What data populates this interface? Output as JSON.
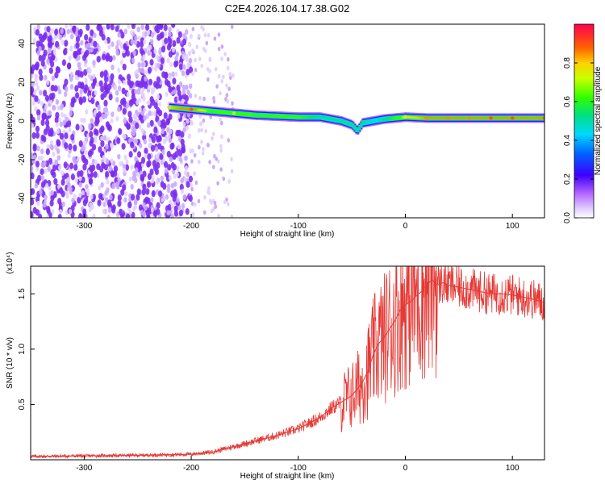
{
  "title": "C2E4.2026.104.17.38.G02",
  "colors": {
    "snr_line": "#e53935",
    "spec_purple": "#7b2cf0",
    "spec_lavender": "#c9a8ff",
    "spec_pale": "#e2d2ff",
    "frame": "#000000"
  },
  "chart_data": [
    {
      "type": "heatmap",
      "title": "C2E4.2026.104.17.38.G02",
      "xlabel": "Height of straight line (km)",
      "ylabel": "Frequency (Hz)",
      "xlim": [
        -350,
        130
      ],
      "ylim": [
        -50,
        50
      ],
      "x_ticks": [
        -300,
        -200,
        -100,
        0,
        100
      ],
      "x_tick_labels": [
        "-300",
        "-200",
        "-100",
        "0",
        "100"
      ],
      "y_ticks": [
        40,
        20,
        0,
        -20,
        -40
      ],
      "y_tick_labels": [
        "40",
        "20",
        "0",
        "-20",
        "-40"
      ],
      "colorbar": {
        "label": "Normalized spectral amplitude",
        "range": [
          0,
          1
        ],
        "ticks": [
          0.0,
          0.2,
          0.4,
          0.6,
          0.8
        ],
        "tick_labels": [
          "0.0",
          "0.2",
          "0.4",
          "0.6",
          "0.8"
        ]
      },
      "ridge": {
        "x": [
          -220,
          -200,
          -180,
          -160,
          -140,
          -120,
          -100,
          -80,
          -70,
          -60,
          -50,
          -45,
          -40,
          -30,
          -20,
          -10,
          0,
          20,
          40,
          60,
          80,
          100,
          130
        ],
        "freq": [
          7,
          6,
          5,
          4,
          3,
          2.5,
          2,
          2,
          1,
          0,
          -2,
          -5,
          -1,
          0,
          1,
          1.5,
          2,
          1.5,
          1.5,
          1.5,
          1.5,
          1.5,
          1.5
        ],
        "amplitude": [
          0.8,
          0.9,
          0.6,
          0.7,
          0.6,
          0.6,
          0.6,
          0.5,
          0.5,
          0.5,
          0.5,
          0.5,
          0.5,
          0.45,
          0.5,
          0.6,
          0.75,
          0.85,
          0.85,
          0.85,
          0.9,
          0.9,
          0.9
        ]
      },
      "noise_region_x": [
        -350,
        -200
      ]
    },
    {
      "type": "line",
      "xlabel": "Height of straight line (km)",
      "ylabel": "SNR (10 * v/v)",
      "y_scale_label": "(x10⁴)",
      "xlim": [
        -350,
        130
      ],
      "ylim": [
        0,
        17500
      ],
      "x_ticks": [
        -300,
        -200,
        -100,
        0,
        100
      ],
      "x_tick_labels": [
        "-300",
        "-200",
        "-100",
        "0",
        "100"
      ],
      "y_ticks": [
        5000,
        10000,
        15000
      ],
      "y_tick_labels": [
        "0.5",
        "1.0",
        "1.5"
      ],
      "series": [
        {
          "x": [
            -350,
            -300,
            -250,
            -200,
            -180,
            -160,
            -140,
            -120,
            -100,
            -80,
            -70,
            -60,
            -50,
            -40,
            -35,
            -30,
            -25,
            -20,
            -15,
            -10,
            -5,
            0,
            5,
            10,
            15,
            20,
            25,
            30,
            35,
            40,
            50,
            60,
            70,
            80,
            90,
            100,
            110,
            120,
            130
          ],
          "y": [
            300,
            350,
            400,
            500,
            700,
            1200,
            1700,
            2200,
            2800,
            3800,
            4600,
            5200,
            5800,
            7000,
            8000,
            9500,
            10500,
            11000,
            11800,
            12500,
            13500,
            14000,
            14300,
            14800,
            15200,
            15800,
            16300,
            15800,
            16000,
            15800,
            15600,
            15400,
            15200,
            15000,
            15000,
            14900,
            14700,
            14500,
            14200
          ]
        }
      ]
    }
  ]
}
